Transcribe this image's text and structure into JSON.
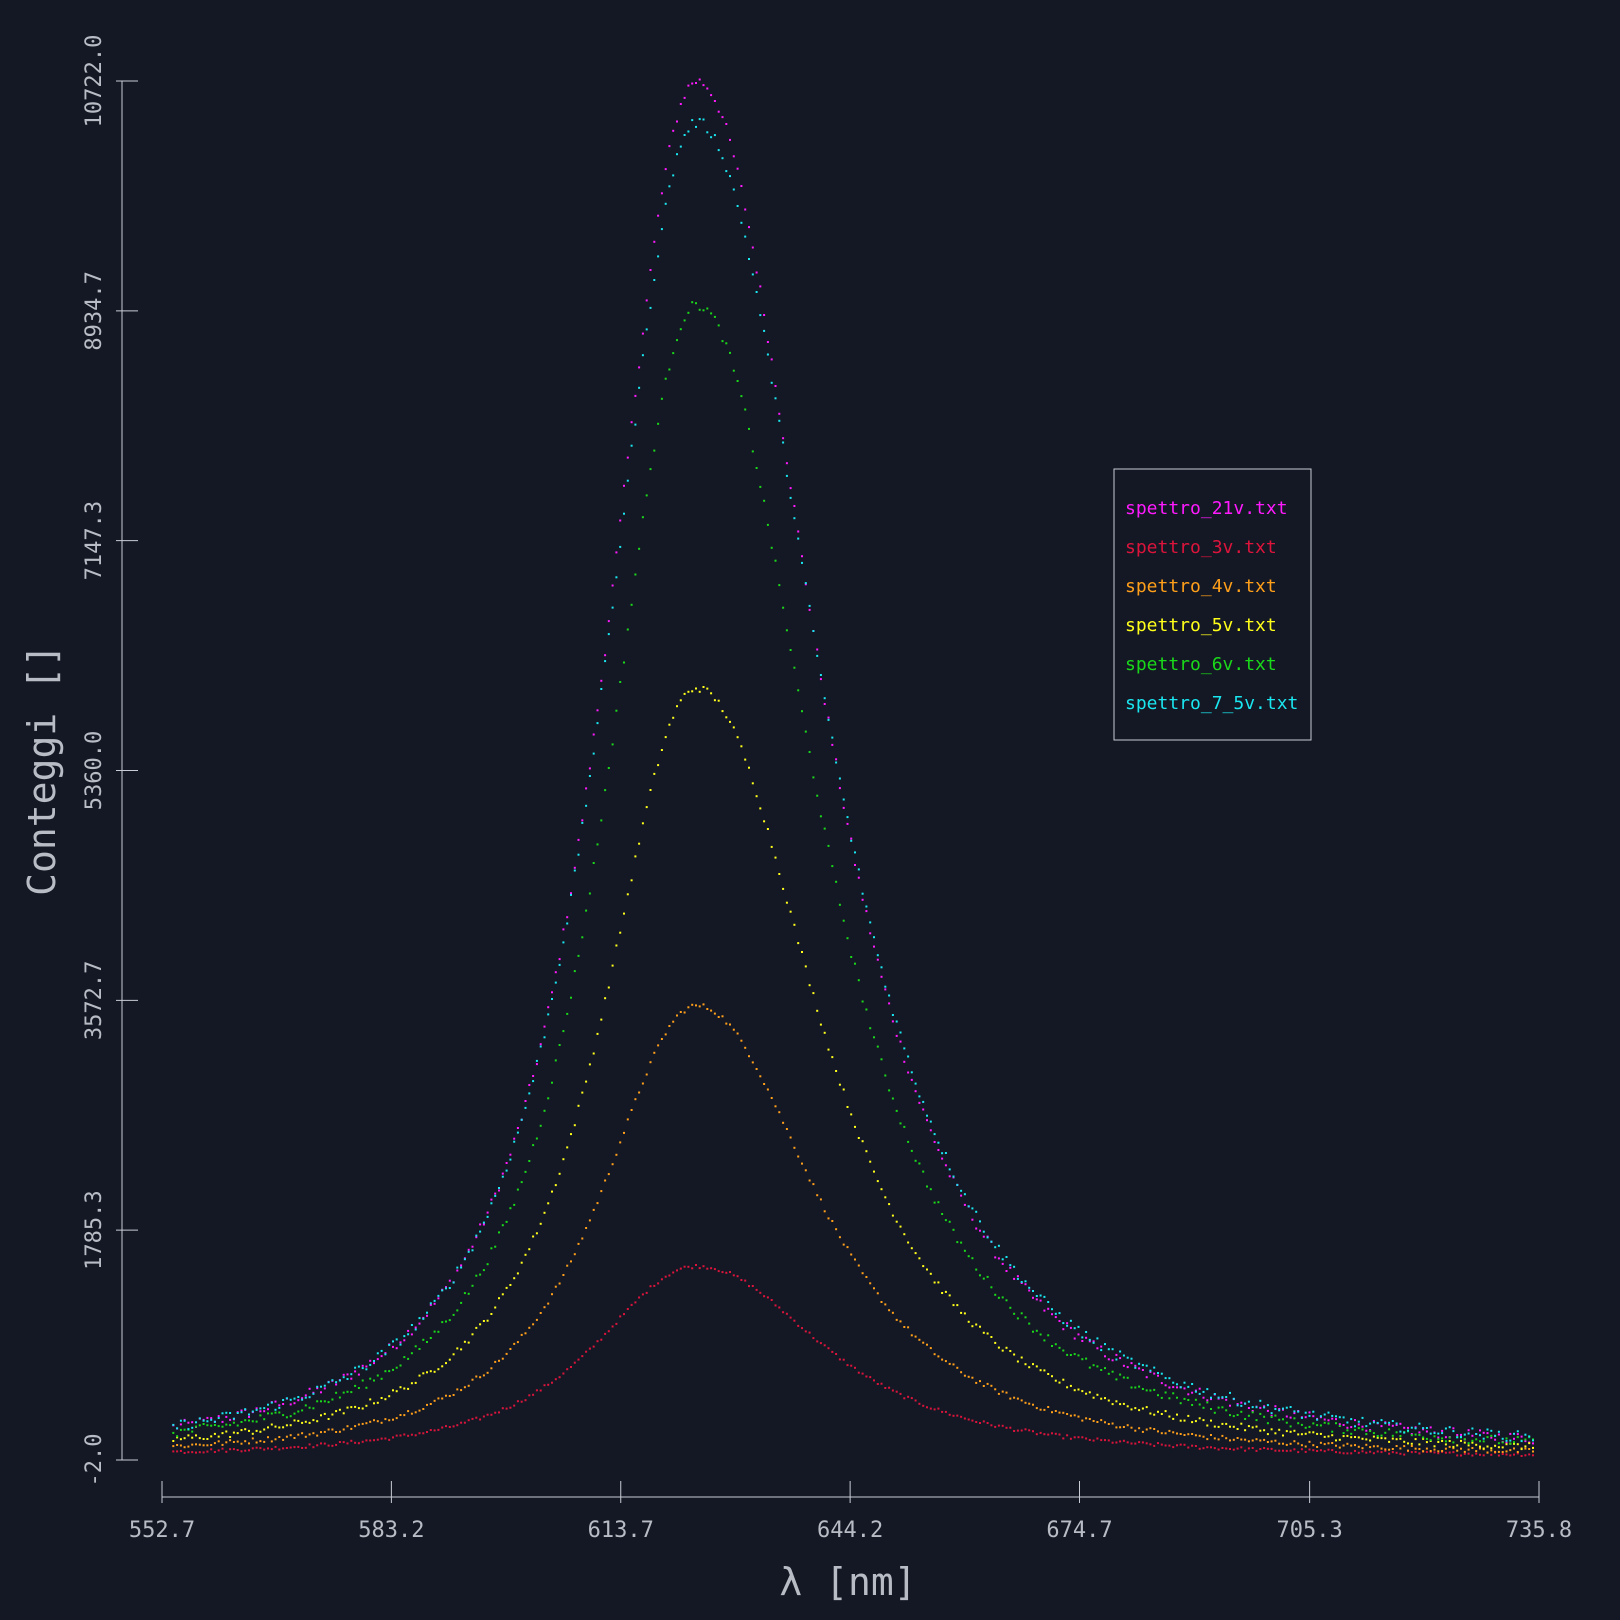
{
  "chart_data": {
    "type": "scatter",
    "xlabel": "λ [nm]",
    "ylabel": "Conteggi []",
    "xlim": [
      552.7,
      735.8
    ],
    "ylim": [
      -2.0,
      10722.0
    ],
    "xticks": [
      "552.7",
      "583.2",
      "613.7",
      "644.2",
      "674.7",
      "705.3",
      "735.8"
    ],
    "yticks": [
      "-2.0",
      "1785.3",
      "3572.7",
      "5360.0",
      "7147.3",
      "8934.7",
      "10722.0"
    ],
    "legend_position": "right",
    "series": [
      {
        "name": "spettro_21v.txt",
        "color": "#ff1aff",
        "peak": 10722,
        "base": 25,
        "gamma_left": 16.3,
        "gamma_right": 21.3
      },
      {
        "name": "spettro_3v.txt",
        "color": "#dc143c",
        "peak": 1505,
        "base": 20,
        "gamma_left": 18.2,
        "gamma_right": 22.5
      },
      {
        "name": "spettro_4v.txt",
        "color": "#ff9f1a",
        "peak": 3530,
        "base": 22,
        "gamma_left": 17.0,
        "gamma_right": 21.3
      },
      {
        "name": "spettro_5v.txt",
        "color": "#ffff1a",
        "peak": 6000,
        "base": 25,
        "gamma_left": 16.5,
        "gamma_right": 21.3
      },
      {
        "name": "spettro_6v.txt",
        "color": "#1ad81a",
        "peak": 8980,
        "base": 28,
        "gamma_left": 16.0,
        "gamma_right": 21.0
      },
      {
        "name": "spettro_7_5v.txt",
        "color": "#1ae6f0",
        "peak": 10400,
        "base": 30,
        "gamma_left": 16.5,
        "gamma_right": 22.0
      }
    ],
    "x_start": 554.2,
    "x_end": 735.0,
    "x_peak": 623.8,
    "n_points": 360
  }
}
